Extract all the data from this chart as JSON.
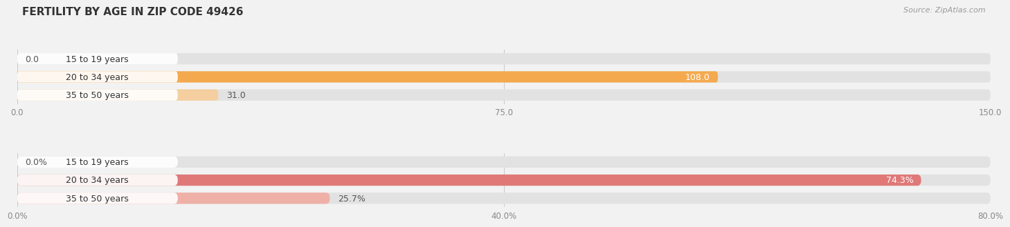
{
  "title": "FERTILITY BY AGE IN ZIP CODE 49426",
  "source": "Source: ZipAtlas.com",
  "chart1": {
    "categories": [
      "15 to 19 years",
      "20 to 34 years",
      "35 to 50 years"
    ],
    "values": [
      0.0,
      108.0,
      31.0
    ],
    "xlim": [
      0,
      150
    ],
    "xticks": [
      0.0,
      75.0,
      150.0
    ],
    "bar_color_dark": "#F5A94E",
    "bar_color_light": "#F5CFA0"
  },
  "chart2": {
    "categories": [
      "15 to 19 years",
      "20 to 34 years",
      "35 to 50 years"
    ],
    "values": [
      0.0,
      74.3,
      25.7
    ],
    "xlim": [
      0,
      80
    ],
    "xticks": [
      0.0,
      40.0,
      80.0
    ],
    "bar_color_dark": "#E07878",
    "bar_color_light": "#EFB0A8"
  },
  "bg_color": "#F2F2F2",
  "bar_bg_color": "#E2E2E2",
  "bar_height": 0.62,
  "bar_gap": 0.38,
  "label_fontsize": 9,
  "tick_fontsize": 8.5,
  "title_fontsize": 11,
  "source_fontsize": 8
}
